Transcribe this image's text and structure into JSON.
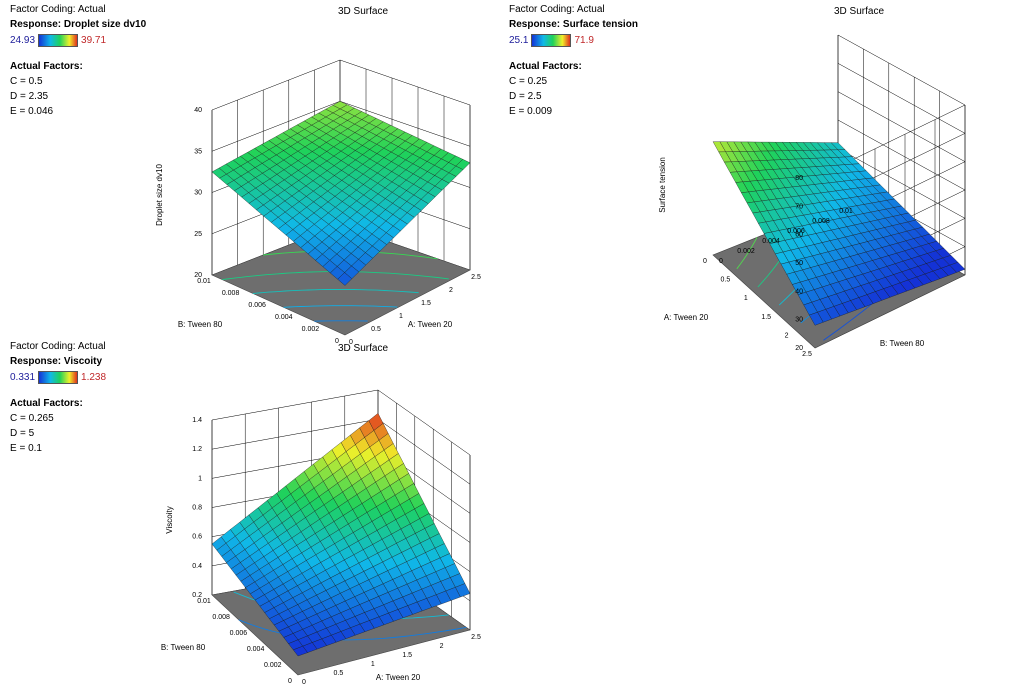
{
  "panels": [
    {
      "coding": "Factor Coding: Actual",
      "response": "Response: Droplet size dv10",
      "legend_min": "24.93",
      "legend_max": "39.71",
      "factors_heading": "Actual Factors:",
      "factors": [
        "C = 0.5",
        "D = 2.35",
        "E = 0.046"
      ],
      "title": "3D Surface"
    },
    {
      "coding": "Factor Coding: Actual",
      "response": "Response: Surface tension",
      "legend_min": "25.1",
      "legend_max": "71.9",
      "factors_heading": "Actual Factors:",
      "factors": [
        "C = 0.25",
        "D = 2.5",
        "E = 0.009"
      ],
      "title": "3D Surface"
    },
    {
      "coding": "Factor Coding: Actual",
      "response": "Response: Viscoity",
      "legend_min": "0.331",
      "legend_max": "1.238",
      "factors_heading": "Actual Factors:",
      "factors": [
        "C = 0.265",
        "D = 5",
        "E = 0.1"
      ],
      "title": "3D Surface"
    }
  ],
  "chart_data": [
    {
      "type": "surface3d",
      "title": "3D Surface",
      "zlabel": "Droplet size dv10",
      "xlabel": "A: Tween 20",
      "xlim": [
        0,
        2.5
      ],
      "xticks": [
        "0",
        "0.5",
        "1",
        "1.5",
        "2",
        "2.5"
      ],
      "ylabel": "B: Tween 80",
      "ylim": [
        0,
        0.01
      ],
      "yticks": [
        "0",
        "0.002",
        "0.004",
        "0.006",
        "0.008",
        "0.01"
      ],
      "zlim": [
        20,
        40
      ],
      "zticks": [
        "20",
        "25",
        "30",
        "35",
        "40"
      ],
      "corners": {
        "a0_b0": 26,
        "a1_b0": 33,
        "a0_b1": 32.5,
        "a1_b1": 35
      },
      "color_range": [
        24.93,
        39.71
      ]
    },
    {
      "type": "surface3d",
      "title": "3D Surface",
      "zlabel": "Surface tension",
      "xlabel": "A: Tween 20",
      "xlim": [
        0,
        2.5
      ],
      "xticks": [
        "0",
        "0.5",
        "1",
        "1.5",
        "2",
        "2.5"
      ],
      "ylabel": "B: Tween 80",
      "ylim": [
        0,
        0.01
      ],
      "yticks": [
        "0",
        "0.002",
        "0.004",
        "0.006",
        "0.008",
        "0.01"
      ],
      "zlim": [
        20,
        80
      ],
      "zticks": [
        "20",
        "30",
        "40",
        "50",
        "60",
        "70",
        "80"
      ],
      "corners": {
        "a0_b0": 60,
        "a1_b0": 28,
        "a0_b1": 42,
        "a1_b1": 22
      },
      "color_range": [
        25.1,
        71.9
      ]
    },
    {
      "type": "surface3d",
      "title": "",
      "zlabel": "Viscoity",
      "xlabel": "A: Tween 20",
      "xlim": [
        0,
        2.5
      ],
      "xticks": [
        "0",
        "0.5",
        "1",
        "1.5",
        "2",
        "2.5"
      ],
      "ylabel": "B: Tween 80",
      "ylim": [
        0,
        0.01
      ],
      "yticks": [
        "0",
        "0.002",
        "0.004",
        "0.006",
        "0.008",
        "0.01"
      ],
      "zlim": [
        0.2,
        1.4
      ],
      "zticks": [
        "0.2",
        "0.4",
        "0.6",
        "0.8",
        "1",
        "1.2",
        "1.4"
      ],
      "corners": {
        "a0_b0": 0.33,
        "a1_b0": 0.45,
        "a0_b1": 0.55,
        "a1_b1": 1.24
      },
      "color_range": [
        0.331,
        1.238
      ]
    }
  ]
}
